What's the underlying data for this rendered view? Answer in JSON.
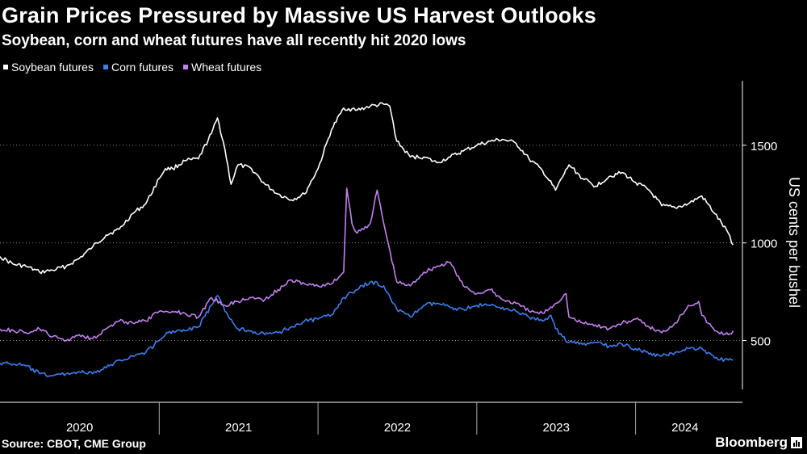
{
  "header": {
    "title": "Grain Prices Pressured by Massive US Harvest Outlooks",
    "subtitle": "Soybean, corn and wheat futures have all recently hit 2020 lows"
  },
  "footer": {
    "source": "Source: CBOT, CME Group",
    "brand": "Bloomberg"
  },
  "chart_data": {
    "type": "line",
    "title": "Grain Prices Pressured by Massive US Harvest Outlooks",
    "subtitle": "Soybean, corn and wheat futures have all recently hit 2020 lows",
    "ylabel": "US cents per bushel",
    "xlabel": "",
    "y_ticks": [
      500,
      1000,
      1500
    ],
    "ylim": [
      250,
      1830
    ],
    "xlim": [
      "2020-01-01",
      "2024-08-15"
    ],
    "x_ticks": [
      "2020",
      "2021",
      "2022",
      "2023",
      "2024"
    ],
    "grid": true,
    "legend_position": "top-left",
    "series": [
      {
        "name": "Soybean futures",
        "color": "#ffffff",
        "x": [
          "2020-01-01",
          "2020-02-01",
          "2020-03-01",
          "2020-04-01",
          "2020-05-01",
          "2020-06-01",
          "2020-07-01",
          "2020-08-01",
          "2020-09-01",
          "2020-10-01",
          "2020-11-01",
          "2020-12-01",
          "2021-01-01",
          "2021-01-15",
          "2021-02-01",
          "2021-03-01",
          "2021-04-01",
          "2021-05-01",
          "2021-05-15",
          "2021-06-01",
          "2021-06-15",
          "2021-07-01",
          "2021-08-01",
          "2021-09-01",
          "2021-10-01",
          "2021-11-01",
          "2021-12-01",
          "2022-01-01",
          "2022-02-01",
          "2022-03-01",
          "2022-04-01",
          "2022-05-01",
          "2022-06-01",
          "2022-06-15",
          "2022-07-01",
          "2022-08-01",
          "2022-09-01",
          "2022-10-01",
          "2022-11-01",
          "2022-12-01",
          "2023-01-01",
          "2023-02-01",
          "2023-03-01",
          "2023-04-01",
          "2023-05-01",
          "2023-06-01",
          "2023-07-01",
          "2023-08-01",
          "2023-09-01",
          "2023-10-01",
          "2023-11-01",
          "2023-12-01",
          "2024-01-01",
          "2024-02-01",
          "2024-03-01",
          "2024-04-01",
          "2024-05-01",
          "2024-06-01",
          "2024-07-01",
          "2024-08-01",
          "2024-08-12"
        ],
        "values": [
          930,
          890,
          880,
          850,
          860,
          880,
          920,
          980,
          1040,
          1070,
          1150,
          1200,
          1330,
          1380,
          1380,
          1420,
          1430,
          1560,
          1640,
          1480,
          1300,
          1400,
          1380,
          1300,
          1250,
          1220,
          1250,
          1380,
          1580,
          1690,
          1680,
          1700,
          1710,
          1700,
          1520,
          1440,
          1440,
          1410,
          1440,
          1470,
          1500,
          1520,
          1530,
          1510,
          1430,
          1370,
          1270,
          1400,
          1330,
          1290,
          1340,
          1360,
          1310,
          1270,
          1190,
          1180,
          1200,
          1240,
          1150,
          1050,
          990
        ]
      },
      {
        "name": "Corn futures",
        "color": "#3a7ff0",
        "x": [
          "2020-01-01",
          "2020-02-01",
          "2020-03-01",
          "2020-04-01",
          "2020-05-01",
          "2020-06-01",
          "2020-07-01",
          "2020-08-01",
          "2020-09-01",
          "2020-10-01",
          "2020-11-01",
          "2020-12-01",
          "2021-01-01",
          "2021-01-15",
          "2021-02-01",
          "2021-03-01",
          "2021-04-01",
          "2021-05-01",
          "2021-05-15",
          "2021-06-01",
          "2021-07-01",
          "2021-08-01",
          "2021-09-01",
          "2021-10-01",
          "2021-11-01",
          "2021-12-01",
          "2022-01-01",
          "2022-02-01",
          "2022-03-01",
          "2022-04-01",
          "2022-05-01",
          "2022-06-01",
          "2022-07-01",
          "2022-08-01",
          "2022-09-01",
          "2022-10-01",
          "2022-11-01",
          "2022-12-01",
          "2023-01-01",
          "2023-02-01",
          "2023-03-01",
          "2023-04-01",
          "2023-05-01",
          "2023-06-01",
          "2023-06-20",
          "2023-07-01",
          "2023-08-01",
          "2023-09-01",
          "2023-10-01",
          "2023-11-01",
          "2023-12-01",
          "2024-01-01",
          "2024-02-01",
          "2024-03-01",
          "2024-04-01",
          "2024-05-01",
          "2024-06-01",
          "2024-07-01",
          "2024-08-01",
          "2024-08-12"
        ],
        "values": [
          385,
          380,
          370,
          330,
          320,
          330,
          340,
          330,
          360,
          400,
          420,
          440,
          500,
          530,
          550,
          550,
          570,
          680,
          730,
          650,
          560,
          550,
          530,
          540,
          570,
          600,
          610,
          630,
          720,
          760,
          800,
          780,
          660,
          620,
          680,
          690,
          670,
          660,
          680,
          680,
          670,
          650,
          620,
          600,
          630,
          560,
          490,
          480,
          490,
          470,
          480,
          460,
          430,
          420,
          440,
          460,
          460,
          410,
          400,
          400
        ]
      },
      {
        "name": "Wheat futures",
        "color": "#c47ff0",
        "x": [
          "2020-01-01",
          "2020-02-01",
          "2020-03-01",
          "2020-04-01",
          "2020-05-01",
          "2020-06-01",
          "2020-07-01",
          "2020-08-01",
          "2020-09-01",
          "2020-10-01",
          "2020-11-01",
          "2020-12-01",
          "2021-01-01",
          "2021-02-01",
          "2021-03-01",
          "2021-04-01",
          "2021-05-01",
          "2021-06-01",
          "2021-07-01",
          "2021-08-01",
          "2021-09-01",
          "2021-10-01",
          "2021-11-01",
          "2021-12-01",
          "2022-01-01",
          "2022-02-01",
          "2022-03-01",
          "2022-03-08",
          "2022-03-20",
          "2022-04-01",
          "2022-05-01",
          "2022-05-17",
          "2022-06-01",
          "2022-07-01",
          "2022-08-01",
          "2022-09-01",
          "2022-10-01",
          "2022-11-01",
          "2022-12-01",
          "2023-01-01",
          "2023-02-01",
          "2023-03-01",
          "2023-04-01",
          "2023-05-01",
          "2023-06-01",
          "2023-07-01",
          "2023-07-25",
          "2023-08-01",
          "2023-09-01",
          "2023-10-01",
          "2023-11-01",
          "2023-12-01",
          "2024-01-01",
          "2024-02-01",
          "2024-03-01",
          "2024-04-01",
          "2024-05-01",
          "2024-05-25",
          "2024-06-01",
          "2024-07-01",
          "2024-08-01",
          "2024-08-12"
        ],
        "values": [
          560,
          550,
          540,
          560,
          520,
          500,
          530,
          510,
          560,
          600,
          590,
          600,
          650,
          650,
          640,
          620,
          720,
          680,
          700,
          720,
          710,
          760,
          810,
          790,
          780,
          790,
          850,
          1280,
          1100,
          1050,
          1100,
          1270,
          1100,
          800,
          780,
          850,
          880,
          900,
          780,
          740,
          760,
          710,
          690,
          650,
          640,
          690,
          740,
          620,
          590,
          580,
          560,
          590,
          610,
          570,
          540,
          590,
          680,
          700,
          630,
          550,
          530,
          550
        ]
      }
    ]
  }
}
